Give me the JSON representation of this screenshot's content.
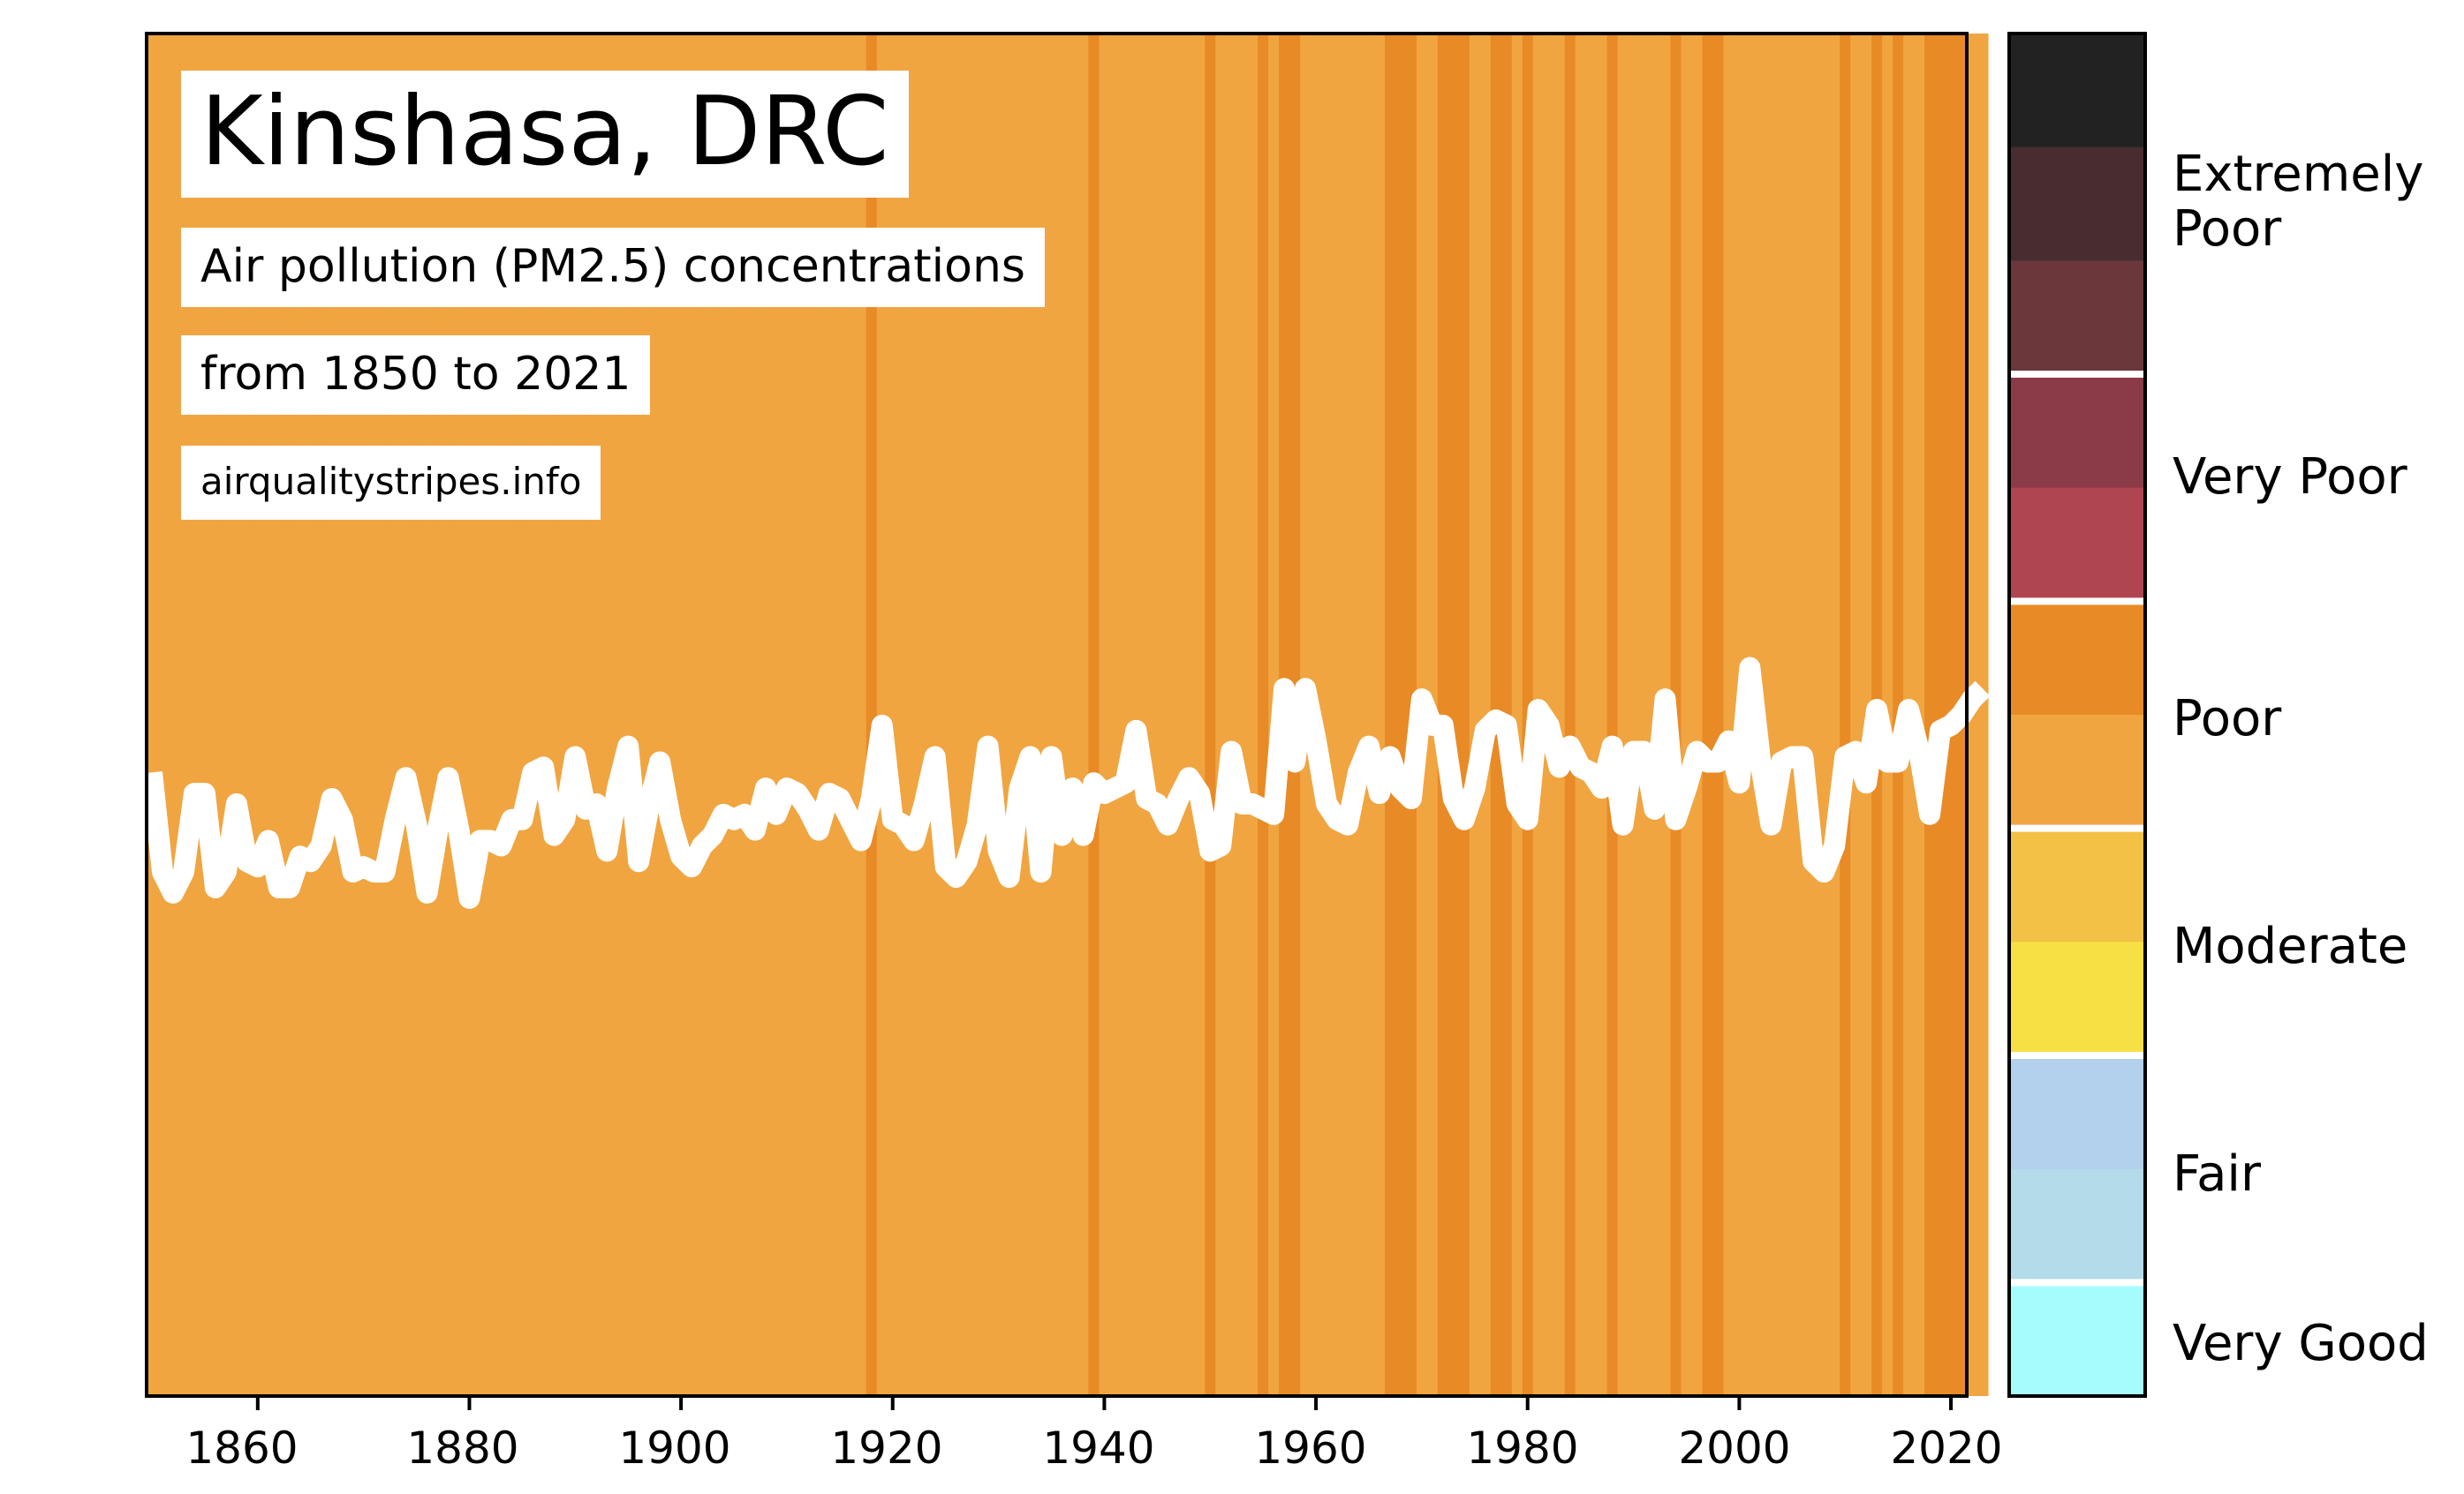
{
  "title": "Kinshasa, DRC",
  "subtitle": "Air pollution (PM2.5) concentrations",
  "range_text": "from 1850 to 2021",
  "source": "airqualitystripes.info",
  "colors": {
    "stripe_light": "#f0a541",
    "stripe_dark": "#e88a26",
    "line": "#ffffff",
    "frame": "#000000"
  },
  "legend": {
    "bands": [
      {
        "label": "Extremely\nPoor",
        "colors": [
          "#222222",
          "#472d30",
          "#6b373a"
        ]
      },
      {
        "label": "Very Poor",
        "colors": [
          "#8b3a47",
          "#b04552"
        ]
      },
      {
        "label": "Poor",
        "colors": [
          "#e88a26",
          "#f0a541"
        ]
      },
      {
        "label": "Moderate",
        "colors": [
          "#f2c146",
          "#f7e044"
        ]
      },
      {
        "label": "Fair",
        "colors": [
          "#b3d0ec",
          "#b3dbe9"
        ]
      },
      {
        "label": "Very Good",
        "colors": [
          "#a6fcfc"
        ]
      }
    ]
  },
  "chart_data": {
    "type": "bar",
    "title": "Kinshasa, DRC",
    "xlim": [
      1850,
      2022
    ],
    "x_ticks": [
      "1860",
      "1880",
      "1900",
      "1920",
      "1940",
      "1960",
      "1980",
      "2000",
      "2020"
    ],
    "stripe_category_dark": "Poor (upper)",
    "stripe_category_light": "Poor (lower)",
    "dark_years": [
      1918,
      1939,
      1950,
      1955,
      1957,
      1958,
      1967,
      1968,
      1969,
      1972,
      1973,
      1974,
      1977,
      1978,
      1980,
      1984,
      1988,
      1994,
      1997,
      1998,
      2010,
      2013,
      2015,
      2018,
      2019,
      2020,
      2021
    ],
    "series": [
      {
        "name": "",
        "x_start": 1850,
        "x_step": 1,
        "values": [
          43.9,
          42.0,
          41.6,
          42.0,
          43.5,
          43.5,
          41.7,
          42.0,
          43.3,
          42.2,
          42.1,
          42.6,
          41.7,
          41.7,
          42.3,
          42.2,
          42.5,
          43.4,
          43.0,
          42.0,
          42.1,
          42.0,
          42.0,
          43.0,
          43.8,
          42.9,
          41.6,
          42.8,
          43.8,
          42.8,
          41.5,
          42.6,
          42.6,
          42.5,
          43.0,
          43.0,
          43.9,
          44.0,
          42.7,
          43.0,
          44.2,
          43.2,
          43.3,
          42.4,
          43.6,
          44.4,
          42.2,
          43.3,
          44.1,
          43.0,
          42.3,
          42.1,
          42.5,
          42.7,
          43.1,
          43.0,
          43.1,
          42.8,
          43.6,
          43.1,
          43.6,
          43.5,
          43.2,
          42.8,
          43.5,
          43.4,
          43.0,
          42.6,
          43.4,
          44.8,
          43.0,
          42.9,
          42.6,
          43.3,
          44.2,
          42.1,
          41.9,
          42.2,
          42.9,
          44.4,
          42.4,
          41.9,
          43.6,
          44.2,
          42.0,
          44.2,
          42.7,
          43.6,
          42.7,
          43.7,
          43.5,
          43.6,
          43.7,
          44.7,
          43.4,
          43.3,
          42.9,
          43.4,
          43.8,
          43.5,
          42.4,
          42.5,
          44.3,
          43.3,
          43.3,
          43.2,
          43.1,
          45.5,
          44.1,
          45.5,
          44.5,
          43.3,
          43.0,
          42.9,
          43.9,
          44.4,
          43.5,
          44.2,
          43.6,
          43.4,
          45.3,
          44.8,
          44.8,
          43.4,
          43.0,
          43.6,
          44.7,
          44.9,
          44.8,
          43.3,
          43.0,
          45.1,
          44.8,
          44.0,
          44.4,
          44.0,
          43.9,
          43.6,
          44.4,
          42.9,
          44.3,
          44.3,
          43.2,
          45.3,
          43.0,
          43.6,
          44.3,
          44.1,
          44.1,
          44.5,
          43.7,
          45.9,
          44.1,
          42.9,
          44.1,
          44.2,
          44.2,
          42.2,
          42.0,
          42.5,
          44.2,
          44.3,
          43.7,
          45.1,
          44.1,
          44.1,
          45.1,
          44.3,
          43.1,
          44.7,
          44.8,
          45.0,
          45.3,
          45.5
        ]
      }
    ],
    "ylim": [
      32,
      58
    ],
    "legend_categories": [
      "Extremely Poor",
      "Very Poor",
      "Poor",
      "Moderate",
      "Fair",
      "Very Good"
    ]
  }
}
